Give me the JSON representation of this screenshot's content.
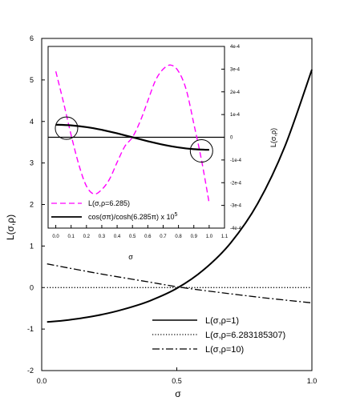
{
  "chart_data": [
    {
      "type": "line",
      "panel": "main",
      "xlabel": "σ",
      "ylabel": "L(σ,ρ)",
      "xlim": [
        0,
        1
      ],
      "ylim": [
        -2,
        6
      ],
      "x_ticks": [
        "0.0",
        "0.5",
        "1.0"
      ],
      "y_ticks": [
        "-2",
        "-1",
        "0",
        "1",
        "2",
        "3",
        "4",
        "5",
        "6"
      ],
      "legend_position": "bottom-right",
      "series": [
        {
          "name": "L(σ,ρ=1)",
          "style": "solid",
          "x": [
            0.02,
            0.1,
            0.2,
            0.3,
            0.4,
            0.5,
            0.6,
            0.7,
            0.8,
            0.9,
            1.0
          ],
          "y": [
            -0.83,
            -0.78,
            -0.68,
            -0.53,
            -0.32,
            -0.02,
            0.43,
            1.08,
            2.03,
            3.4,
            5.25
          ]
        },
        {
          "name": "L(σ,ρ=6.283185307)",
          "style": "dotted",
          "x": [
            0.02,
            1.0
          ],
          "y": [
            0,
            0
          ]
        },
        {
          "name": "L(σ,ρ=10)",
          "style": "dashdot",
          "x": [
            0.02,
            0.2,
            0.4,
            0.5,
            0.6,
            0.8,
            1.0
          ],
          "y": [
            0.57,
            0.35,
            0.13,
            0.02,
            -0.07,
            -0.23,
            -0.37
          ]
        }
      ]
    },
    {
      "type": "line",
      "panel": "inset",
      "xlabel": "σ",
      "ylabel": "L(σ,ρ)",
      "xlim": [
        -0.05,
        1.1
      ],
      "ylim": [
        -0.0004,
        0.0004
      ],
      "x_ticks": [
        "0.0",
        "0.1",
        "0.2",
        "0.3",
        "0.4",
        "0.5",
        "0.6",
        "0.7",
        "0.8",
        "0.9",
        "1.0",
        "1.1"
      ],
      "y_ticks_right": [
        "4e-4",
        "3e-4",
        "2e-4",
        "1e-4",
        "0",
        "-1e-4",
        "-2e-4",
        "-3e-4",
        "-4e-4"
      ],
      "legend_position": "bottom-left",
      "series": [
        {
          "name": "L(σ,ρ=6.285)",
          "style": "dashed",
          "color": "#ff00ff",
          "x": [
            0.0,
            0.05,
            0.1,
            0.15,
            0.2,
            0.25,
            0.3,
            0.35,
            0.4,
            0.45,
            0.5,
            0.55,
            0.6,
            0.65,
            0.7,
            0.75,
            0.8,
            0.85,
            0.9,
            0.95,
            1.0
          ],
          "y": [
            0.00029,
            0.000155,
            1e-05,
            -0.00012,
            -0.000215,
            -0.00025,
            -0.00023,
            -0.000185,
            -0.00011,
            -4e-05,
            0.0,
            7e-05,
            0.00016,
            0.00025,
            0.0003,
            0.000318,
            0.00029,
            0.00021,
            6e-05,
            -0.0001,
            -0.00029
          ]
        },
        {
          "name": "cos(σπ)/cosh(6.285π) x 10",
          "name_superscript": "5",
          "style": "solid",
          "color": "#000000",
          "x": [
            0.0,
            0.1,
            0.2,
            0.3,
            0.4,
            0.5,
            0.6,
            0.7,
            0.8,
            0.9,
            1.0
          ],
          "y": [
            5.55e-05,
            5.25e-05,
            4.48e-05,
            3.26e-05,
            1.72e-05,
            0.0,
            -1.72e-05,
            -3.26e-05,
            -4.48e-05,
            -5.25e-05,
            -5.55e-05
          ]
        }
      ],
      "reference_lines": [
        0
      ],
      "circles": [
        {
          "x": 0.07,
          "y": 4e-05
        },
        {
          "x": 0.95,
          "y": -6e-05
        }
      ]
    }
  ]
}
